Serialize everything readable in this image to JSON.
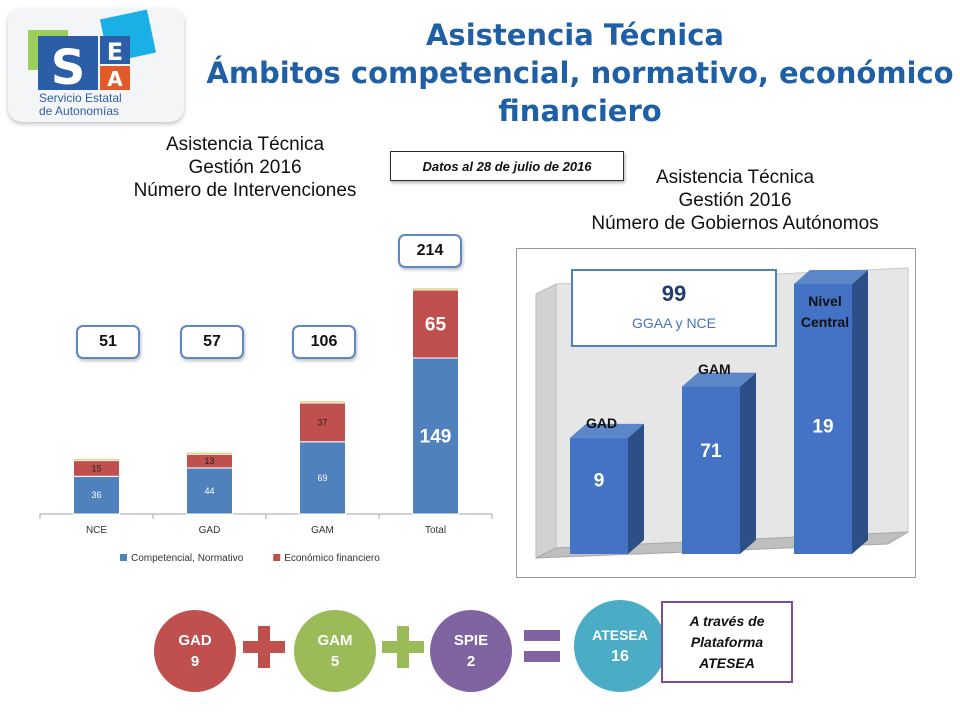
{
  "logo": {
    "letters": [
      "S",
      "E",
      "A"
    ],
    "subtitle_line1": "Servicio Estatal",
    "subtitle_line2": "de Autonomías"
  },
  "title": {
    "line1": "Asistencia Técnica",
    "line2": "Ámbitos competencial, normativo, económico",
    "line3": "financiero"
  },
  "date_note": "Datos al 28 de julio de 2016",
  "left_caption": {
    "line1": "Asistencia Técnica",
    "line2": "Gestión  2016",
    "line3": "Número de Intervenciones"
  },
  "right_caption": {
    "line1": "Asistencia Técnica",
    "line2": "Gestión  2016",
    "line3": "Número de Gobiernos Autónomos"
  },
  "totals": [
    "51",
    "57",
    "106",
    "214"
  ],
  "callout": {
    "value": "99",
    "label": "GGAA  y  NCE"
  },
  "chart_data": [
    {
      "type": "bar",
      "stacked": true,
      "categories": [
        "NCE",
        "GAD",
        "GAM",
        "Total"
      ],
      "series": [
        {
          "name": "Competencial, Normativo",
          "values": [
            36,
            44,
            69,
            149
          ],
          "color": "#4f81bd"
        },
        {
          "name": "Económico financiero",
          "values": [
            15,
            13,
            37,
            65
          ],
          "color": "#c0504d"
        }
      ],
      "ylim": [
        0,
        214
      ],
      "grid": false,
      "legend": "bottom"
    },
    {
      "type": "bar",
      "style": "3d",
      "categories": [
        "GAD",
        "GAM",
        "Nivel Central"
      ],
      "values": [
        9,
        71,
        19
      ],
      "relative_heights": [
        0.43,
        0.62,
        1.0
      ],
      "color": "#4472c4",
      "note": "bar heights in the original are not proportional to the printed values"
    }
  ],
  "bar3d_labels": {
    "gad": "GAD",
    "gam": "GAM",
    "nivel_line1": "Nivel",
    "nivel_line2": "Central"
  },
  "equation": {
    "gad": {
      "label": "GAD",
      "value": "9",
      "color": "#c0504d"
    },
    "gam": {
      "label": "GAM",
      "value": "5",
      "color": "#9bbb59"
    },
    "spie": {
      "label": "SPIE",
      "value": "2",
      "color": "#8064a2"
    },
    "atesea": {
      "label": "ATESEA",
      "value": "16",
      "color": "#4bacc6"
    },
    "plus_color": "#c0504d",
    "plus2_color": "#9bbb59",
    "equals_color": "#8064a2"
  },
  "platform_box": {
    "line1": "A través de",
    "line2": "Plataforma",
    "line3": "ATESEA"
  }
}
